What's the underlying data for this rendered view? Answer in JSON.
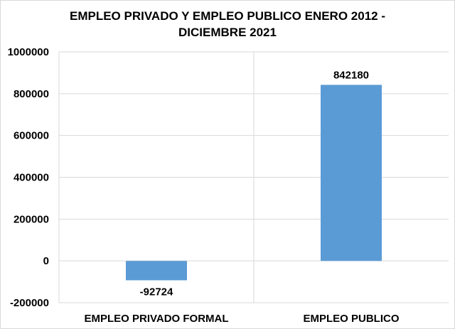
{
  "chart_data": {
    "type": "bar",
    "title_lines": [
      "EMPLEO PRIVADO Y EMPLEO PUBLICO ENERO 2012 -",
      "DICIEMBRE 2021"
    ],
    "categories": [
      "EMPLEO PRIVADO FORMAL",
      "EMPLEO PUBLICO"
    ],
    "values": [
      -92724,
      842180
    ],
    "data_labels": [
      "-92724",
      "842180"
    ],
    "ylim": [
      -200000,
      1000000
    ],
    "yticks": [
      -200000,
      0,
      200000,
      400000,
      600000,
      800000,
      1000000
    ],
    "ytick_labels": [
      "-200000",
      "0",
      "200000",
      "400000",
      "600000",
      "800000",
      "1000000"
    ],
    "grid": true,
    "bar_color": "#5b9bd5",
    "xlabel": "",
    "ylabel": ""
  }
}
